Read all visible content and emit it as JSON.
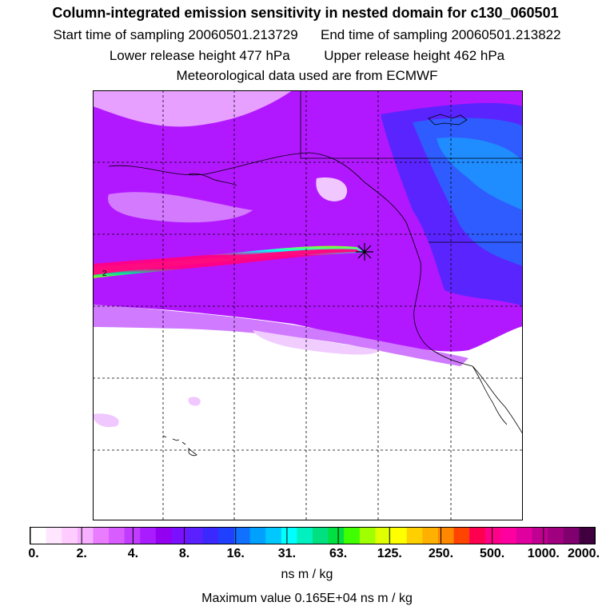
{
  "header": {
    "title": "Column-integrated emission sensitivity in nested domain for c130_060501",
    "start_label": "Start time of sampling 20060501.213729",
    "end_label": "End time of sampling 20060501.213822",
    "lower_label": "Lower release height  477 hPa",
    "upper_label": "Upper release height  462 hPa",
    "met_label": "Meteorological data used are from ECMWF"
  },
  "map": {
    "release_marker": "star-marker",
    "plume_label": "2",
    "colors": {
      "background_low": "#a400ff",
      "plume_core": "#ff0a80",
      "ocean_blue": "#2f5cff",
      "grid": "#000000"
    }
  },
  "colorbar": {
    "ticks": [
      "0.",
      "2.",
      "4.",
      "8.",
      "16.",
      "31.",
      "63.",
      "125.",
      "250.",
      "500.",
      "1000.",
      "2000."
    ],
    "unit": "ns m / kg",
    "colors": [
      "#ffffff",
      "#ffe6ff",
      "#ffccff",
      "#f7b0ff",
      "#e97cff",
      "#d85cff",
      "#c23cff",
      "#a81cff",
      "#9400f0",
      "#7a10ff",
      "#5a20ff",
      "#3a28ff",
      "#2040ff",
      "#1070ff",
      "#00a0ff",
      "#00c8ff",
      "#00ffff",
      "#00f0c0",
      "#00e080",
      "#00e040",
      "#40ff00",
      "#a0ff00",
      "#e0ff00",
      "#ffff00",
      "#ffd000",
      "#ffb000",
      "#ff8800",
      "#ff4400",
      "#ff0050",
      "#ff0088",
      "#ff00a0",
      "#e000a0",
      "#c00090",
      "#a00080",
      "#800070",
      "#400040"
    ]
  },
  "footer": {
    "max_value": "Maximum value  0.165E+04 ns m / kg"
  }
}
